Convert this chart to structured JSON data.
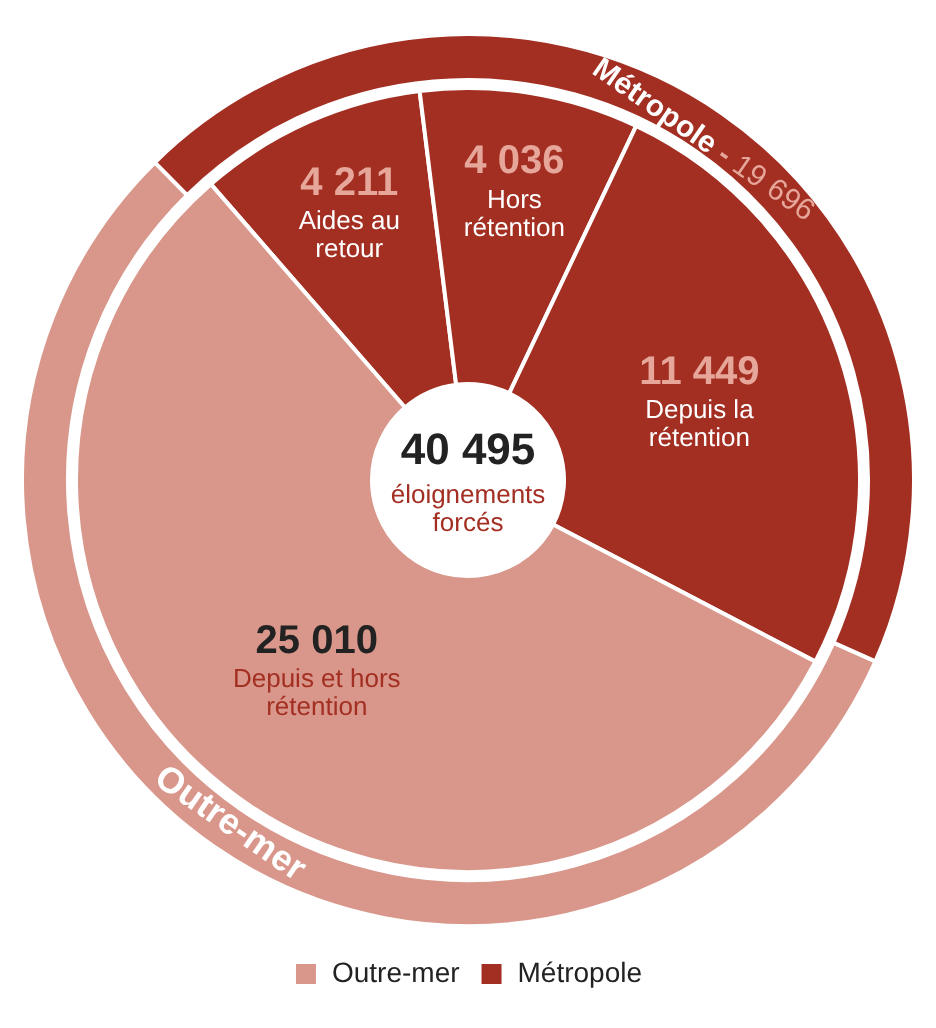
{
  "chart_data": [
    {
      "type": "donut",
      "categories": [
        "Outre-mer",
        "Métropole"
      ],
      "values": [
        25010,
        19696
      ],
      "colors": [
        "#d9968a",
        "#a32e22"
      ],
      "value_labels": [
        null,
        "19 696"
      ],
      "legend": "bottom",
      "annotations": [
        "-"
      ]
    },
    {
      "type": "donut",
      "categories": [
        "Aides au retour",
        "Hors rétention",
        "Depuis la rétention",
        "Depuis et hors rétention"
      ],
      "values": [
        4211,
        4036,
        11449,
        25010
      ],
      "colors": [
        "#a32e22",
        "#a32e22",
        "#a32e22",
        "#d9968a"
      ],
      "value_labels": [
        "4 211",
        "4 036",
        "11 449",
        "25 010"
      ],
      "annotations": [
        "40 495",
        "éloignements forcés"
      ]
    }
  ]
}
